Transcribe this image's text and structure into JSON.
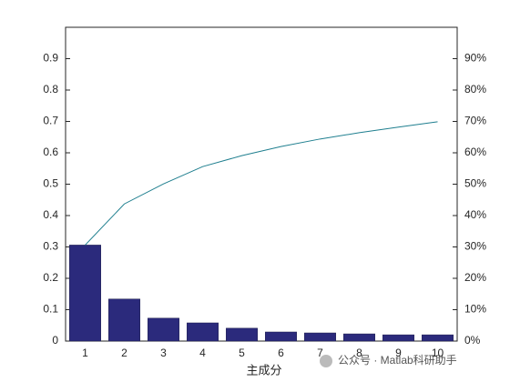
{
  "chart_data": {
    "type": "pareto",
    "xlabel": "主成分",
    "categories": [
      "1",
      "2",
      "3",
      "4",
      "5",
      "6",
      "7",
      "8",
      "9",
      "10"
    ],
    "series": [
      {
        "color": "#2b2a7c",
        "values": [
          0.306,
          0.134,
          0.073,
          0.058,
          0.041,
          0.029,
          0.026,
          0.023,
          0.02,
          0.02
        ]
      },
      {
        "color": "#1f7f8f",
        "axis": "y2",
        "values": [
          30.6,
          43.7,
          50.1,
          55.6,
          59.1,
          62.0,
          64.4,
          66.4,
          68.2,
          69.9
        ]
      }
    ],
    "ylim": [
      0,
      1
    ],
    "yticks": [
      0,
      0.1,
      0.2,
      0.3,
      0.4,
      0.5,
      0.6,
      0.7,
      0.8,
      0.9
    ],
    "y2lim": [
      0,
      100
    ],
    "y2ticks": [
      {
        "value": 0,
        "label": "0%"
      },
      {
        "value": 10,
        "label": "10%"
      },
      {
        "value": 20,
        "label": "20%"
      },
      {
        "value": 30,
        "label": "30%"
      },
      {
        "value": 40,
        "label": "40%"
      },
      {
        "value": 50,
        "label": "50%"
      },
      {
        "value": 60,
        "label": "60%"
      },
      {
        "value": 70,
        "label": "70%"
      },
      {
        "value": 80,
        "label": "80%"
      },
      {
        "value": 90,
        "label": "90%"
      }
    ],
    "annotations": [
      "公众号 · Matlab科研助手"
    ]
  }
}
